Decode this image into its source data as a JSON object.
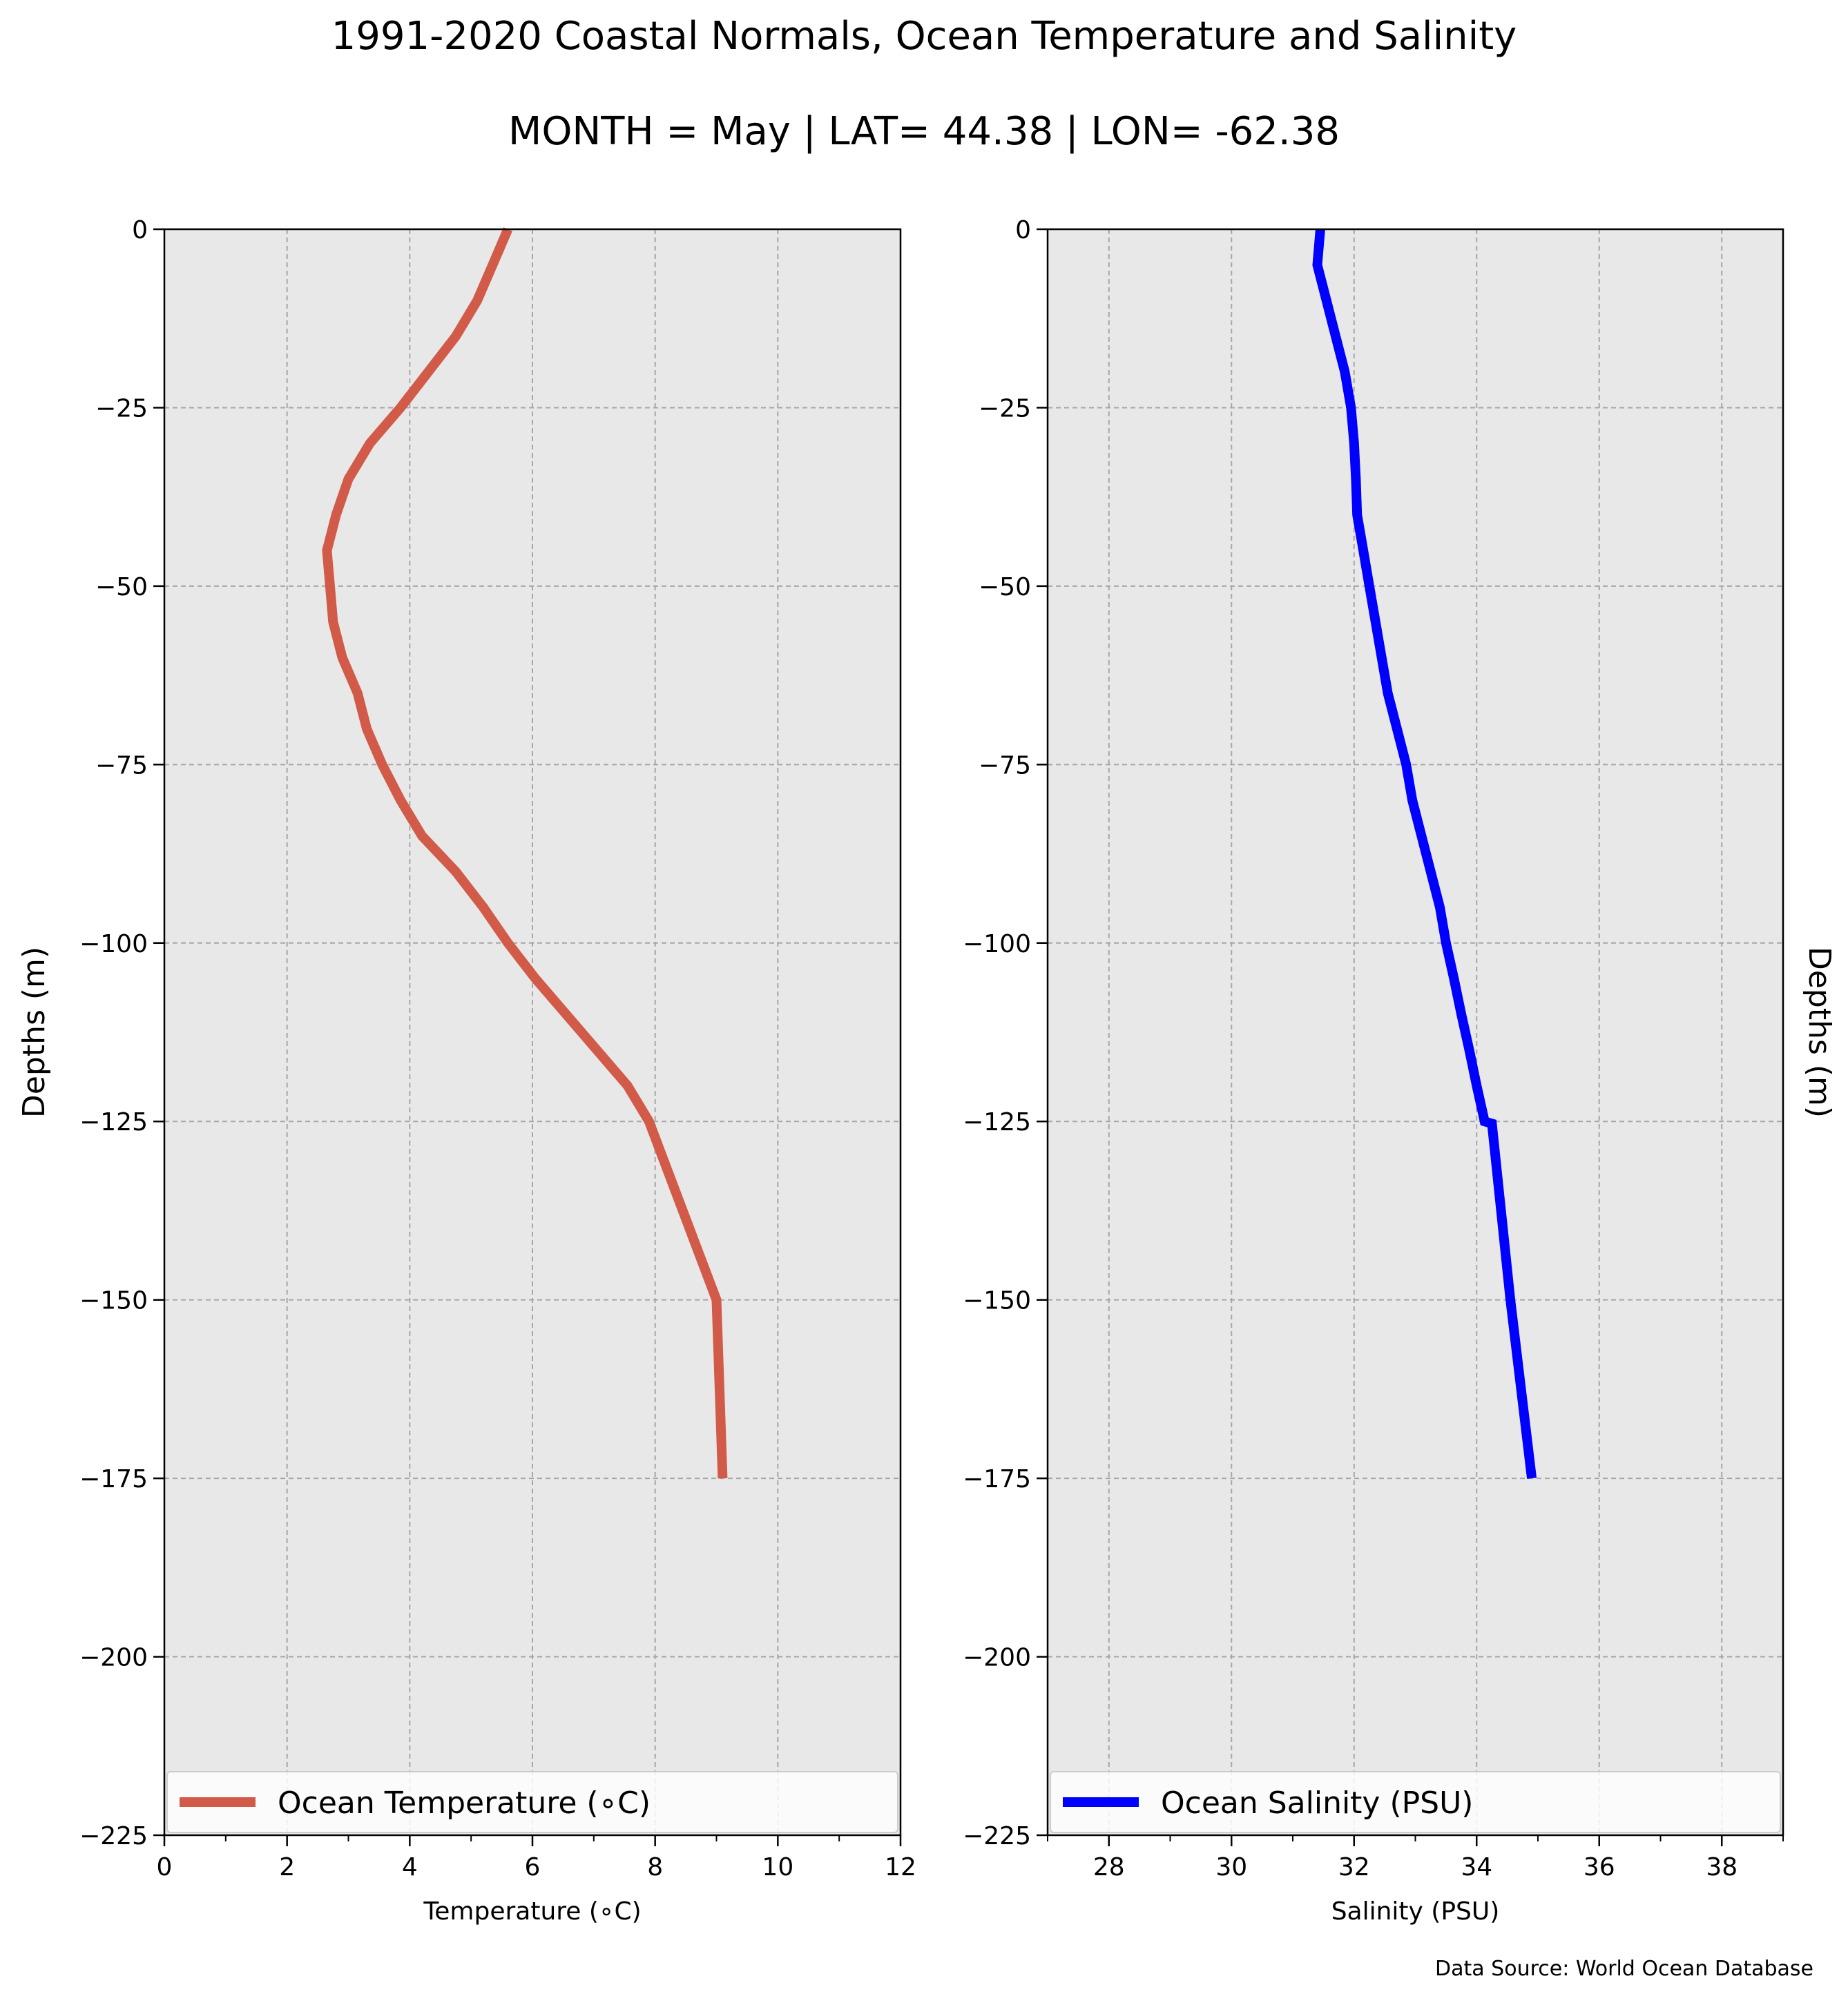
{
  "title": "1991-2020 Coastal Normals, Ocean Temperature and Salinity",
  "subtitle": "MONTH = May | LAT= 44.38 | LON= -62.38",
  "source": "Data Source: World Ocean Database",
  "chart_data": [
    {
      "type": "line",
      "xlabel": "Temperature (∘C)",
      "ylabel": "Depths (m)",
      "xlim": [
        0,
        12
      ],
      "ylim": [
        -225,
        0
      ],
      "xticks": [
        0,
        2,
        4,
        6,
        8,
        10,
        12
      ],
      "yticks": [
        0,
        -25,
        -50,
        -75,
        -100,
        -125,
        -150,
        -175,
        -200,
        -225
      ],
      "grid": true,
      "legend_position": "bottom",
      "series": [
        {
          "name": "Ocean Temperature (∘C)",
          "color": "#d15a48",
          "x": [
            5.6,
            5.5,
            5.35,
            5.1,
            4.75,
            4.3,
            3.85,
            3.35,
            3.0,
            2.8,
            2.65,
            2.7,
            2.75,
            2.9,
            3.15,
            3.3,
            3.55,
            3.85,
            4.2,
            4.75,
            5.2,
            5.6,
            6.05,
            6.55,
            7.05,
            7.55,
            7.9,
            9.0,
            9.1
          ],
          "y": [
            0,
            -2,
            -5,
            -10,
            -15,
            -20,
            -25,
            -30,
            -35,
            -40,
            -45,
            -50,
            -55,
            -60,
            -65,
            -70,
            -75,
            -80,
            -85,
            -90,
            -95,
            -100,
            -105,
            -110,
            -115,
            -120,
            -125,
            -150,
            -175
          ]
        }
      ]
    },
    {
      "type": "line",
      "xlabel": "Salinity (PSU)",
      "ylabel": "Depths (m)",
      "xlim": [
        27,
        39
      ],
      "ylim": [
        -225,
        0
      ],
      "xticks": [
        28,
        30,
        32,
        34,
        36,
        38
      ],
      "yticks": [
        0,
        -25,
        -50,
        -75,
        -100,
        -125,
        -150,
        -175,
        -200,
        -225
      ],
      "grid": true,
      "legend_position": "bottom",
      "series": [
        {
          "name": "Ocean Salinity (PSU)",
          "color": "#0000ff",
          "x": [
            31.45,
            31.4,
            31.55,
            31.7,
            31.85,
            31.95,
            32.0,
            32.03,
            32.05,
            32.15,
            32.25,
            32.35,
            32.45,
            32.55,
            32.7,
            32.85,
            32.95,
            33.1,
            33.25,
            33.4,
            33.5,
            33.63,
            33.75,
            33.88,
            34.0,
            34.13,
            34.25,
            34.55,
            34.9
          ],
          "y": [
            0,
            -5,
            -10,
            -15,
            -20,
            -25,
            -30,
            -35,
            -40,
            -45,
            -50,
            -55,
            -60,
            -65,
            -70,
            -75,
            -80,
            -85,
            -90,
            -95,
            -100,
            -105,
            -110,
            -115,
            -120,
            -125,
            -125.3,
            -150,
            -175
          ]
        }
      ]
    }
  ]
}
